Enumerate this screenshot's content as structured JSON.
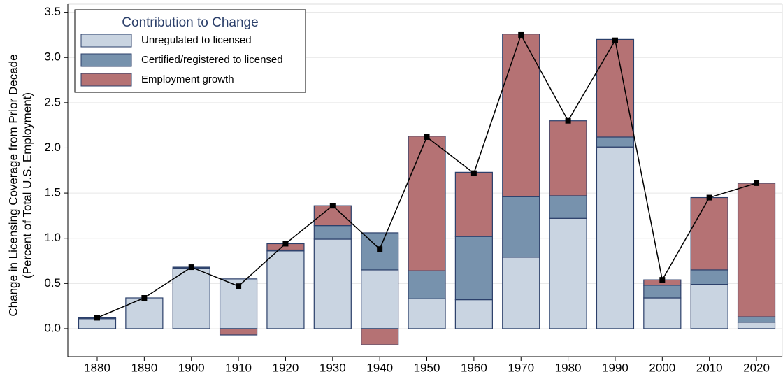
{
  "chart_data": {
    "type": "stacked_bar_line",
    "y_label": [
      "Change in Licensing Coverage from Prior Decade",
      "(Percent of Total U.S. Employment)"
    ],
    "legend_title": "Contribution to Change",
    "legend": "upper left",
    "categories": [
      "1880",
      "1890",
      "1900",
      "1910",
      "1920",
      "1930",
      "1940",
      "1950",
      "1960",
      "1970",
      "1980",
      "1990",
      "2000",
      "2010",
      "2020"
    ],
    "series": [
      {
        "name": "Unregulated to licensed",
        "color": "#c9d4e1",
        "values": [
          0.11,
          0.34,
          0.67,
          0.55,
          0.86,
          0.99,
          0.65,
          0.33,
          0.32,
          0.79,
          1.22,
          2.01,
          0.34,
          0.49,
          0.07
        ]
      },
      {
        "name": "Certified/registered to licensed",
        "color": "#7792ad",
        "values": [
          0.01,
          0,
          0.01,
          0,
          0.01,
          0.15,
          0.41,
          0.31,
          0.7,
          0.67,
          0.25,
          0.11,
          0.14,
          0.16,
          0.06
        ]
      },
      {
        "name": "Employment growth",
        "color": "#b57274",
        "values": [
          0,
          0,
          0,
          -0.07,
          0.07,
          0.22,
          -0.18,
          1.49,
          0.71,
          1.8,
          0.83,
          1.08,
          0.06,
          0.8,
          1.48
        ]
      }
    ],
    "totals": [
      0.12,
      0.34,
      0.68,
      0.47,
      0.94,
      1.36,
      0.88,
      2.12,
      1.72,
      3.25,
      2.3,
      3.19,
      0.54,
      1.45,
      1.61
    ],
    "line_color": "#000000",
    "ylim": [
      -0.31,
      3.59
    ],
    "yticks": [
      {
        "value": 0,
        "label": "0.0"
      },
      0.5,
      {
        "value": 1,
        "label": "1.0"
      },
      1.5,
      {
        "value": 2,
        "label": "2.0"
      },
      2.5,
      {
        "value": 3,
        "label": "3.0"
      },
      3.5
    ],
    "grid": true
  }
}
